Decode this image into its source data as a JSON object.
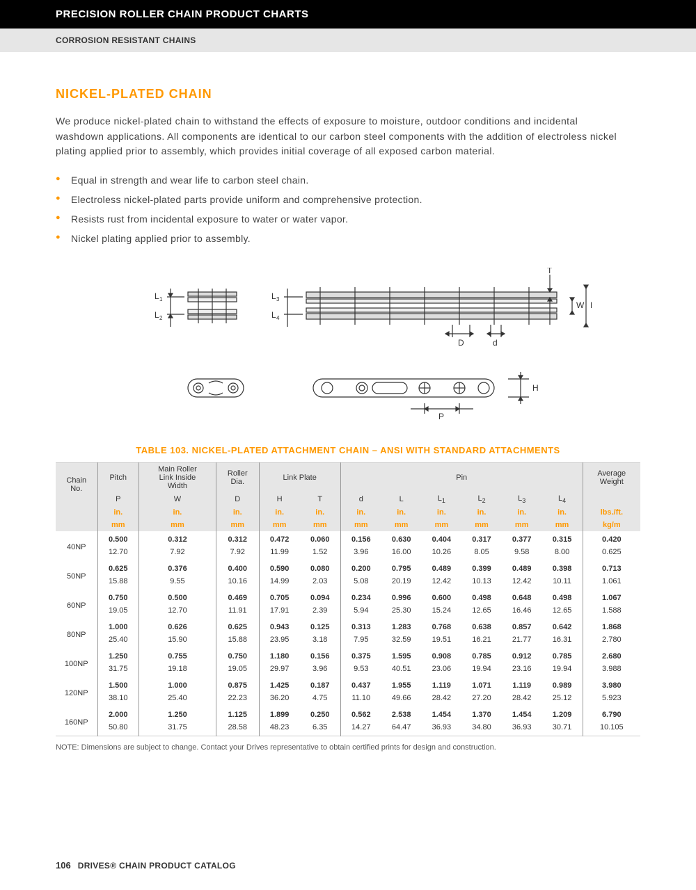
{
  "header": {
    "title_black": "PRECISION ROLLER CHAIN PRODUCT CHARTS",
    "title_gray": "CORROSION RESISTANT CHAINS"
  },
  "section": {
    "title": "NICKEL-PLATED CHAIN",
    "intro": "We produce nickel-plated chain to withstand the effects of exposure to moisture, outdoor conditions and incidental washdown applications. All components are identical to our carbon steel components with the addition of electroless nickel plating applied prior to assembly, which provides initial coverage of all exposed carbon material.",
    "bullets": [
      "Equal in strength and wear life to carbon steel chain.",
      "Electroless nickel-plated parts provide uniform and comprehensive protection.",
      "Resists rust from incidental exposure to water or water vapor.",
      "Nickel plating applied prior to assembly."
    ]
  },
  "diagram": {
    "labels": [
      "L₁",
      "L₂",
      "L₃",
      "L₄",
      "T",
      "W",
      "L",
      "D",
      "d",
      "P",
      "H"
    ]
  },
  "table": {
    "title": "TABLE 103. NICKEL-PLATED ATTACHMENT CHAIN – ANSI WITH STANDARD ATTACHMENTS",
    "groups": [
      "Chain No.",
      "Pitch",
      "Main Roller Link Inside Width",
      "Roller Dia.",
      "Link Plate",
      "Pin",
      "Average Weight"
    ],
    "sub_symbols": [
      "",
      "P",
      "W",
      "D",
      "H",
      "T",
      "d",
      "L",
      "L₁",
      "L₂",
      "L₃",
      "L₄",
      ""
    ],
    "unit_in": [
      "",
      "in.",
      "in.",
      "in.",
      "in.",
      "in.",
      "in.",
      "in.",
      "in.",
      "in.",
      "in.",
      "in.",
      "lbs./ft."
    ],
    "unit_mm": [
      "",
      "mm",
      "mm",
      "mm",
      "mm",
      "mm",
      "mm",
      "mm",
      "mm",
      "mm",
      "mm",
      "mm",
      "kg/m"
    ],
    "rows": [
      {
        "chain": "40NP",
        "in": [
          "0.500",
          "0.312",
          "0.312",
          "0.472",
          "0.060",
          "0.156",
          "0.630",
          "0.404",
          "0.317",
          "0.377",
          "0.315",
          "0.420"
        ],
        "mm": [
          "12.70",
          "7.92",
          "7.92",
          "11.99",
          "1.52",
          "3.96",
          "16.00",
          "10.26",
          "8.05",
          "9.58",
          "8.00",
          "0.625"
        ]
      },
      {
        "chain": "50NP",
        "in": [
          "0.625",
          "0.376",
          "0.400",
          "0.590",
          "0.080",
          "0.200",
          "0.795",
          "0.489",
          "0.399",
          "0.489",
          "0.398",
          "0.713"
        ],
        "mm": [
          "15.88",
          "9.55",
          "10.16",
          "14.99",
          "2.03",
          "5.08",
          "20.19",
          "12.42",
          "10.13",
          "12.42",
          "10.11",
          "1.061"
        ]
      },
      {
        "chain": "60NP",
        "in": [
          "0.750",
          "0.500",
          "0.469",
          "0.705",
          "0.094",
          "0.234",
          "0.996",
          "0.600",
          "0.498",
          "0.648",
          "0.498",
          "1.067"
        ],
        "mm": [
          "19.05",
          "12.70",
          "11.91",
          "17.91",
          "2.39",
          "5.94",
          "25.30",
          "15.24",
          "12.65",
          "16.46",
          "12.65",
          "1.588"
        ]
      },
      {
        "chain": "80NP",
        "in": [
          "1.000",
          "0.626",
          "0.625",
          "0.943",
          "0.125",
          "0.313",
          "1.283",
          "0.768",
          "0.638",
          "0.857",
          "0.642",
          "1.868"
        ],
        "mm": [
          "25.40",
          "15.90",
          "15.88",
          "23.95",
          "3.18",
          "7.95",
          "32.59",
          "19.51",
          "16.21",
          "21.77",
          "16.31",
          "2.780"
        ]
      },
      {
        "chain": "100NP",
        "in": [
          "1.250",
          "0.755",
          "0.750",
          "1.180",
          "0.156",
          "0.375",
          "1.595",
          "0.908",
          "0.785",
          "0.912",
          "0.785",
          "2.680"
        ],
        "mm": [
          "31.75",
          "19.18",
          "19.05",
          "29.97",
          "3.96",
          "9.53",
          "40.51",
          "23.06",
          "19.94",
          "23.16",
          "19.94",
          "3.988"
        ]
      },
      {
        "chain": "120NP",
        "in": [
          "1.500",
          "1.000",
          "0.875",
          "1.425",
          "0.187",
          "0.437",
          "1.955",
          "1.119",
          "1.071",
          "1.119",
          "0.989",
          "3.980"
        ],
        "mm": [
          "38.10",
          "25.40",
          "22.23",
          "36.20",
          "4.75",
          "11.10",
          "49.66",
          "28.42",
          "27.20",
          "28.42",
          "25.12",
          "5.923"
        ]
      },
      {
        "chain": "160NP",
        "in": [
          "2.000",
          "1.250",
          "1.125",
          "1.899",
          "0.250",
          "0.562",
          "2.538",
          "1.454",
          "1.370",
          "1.454",
          "1.209",
          "6.790"
        ],
        "mm": [
          "50.80",
          "31.75",
          "28.58",
          "48.23",
          "6.35",
          "14.27",
          "64.47",
          "36.93",
          "34.80",
          "36.93",
          "30.71",
          "10.105"
        ]
      }
    ],
    "note": "NOTE: Dimensions are subject to change. Contact your Drives representative to obtain certified prints for design and construction."
  },
  "footer": {
    "page": "106",
    "catalog": "DRIVES® CHAIN PRODUCT CATALOG"
  },
  "colors": {
    "accent": "#ff9900",
    "header_bg": "#000000",
    "gray_bg": "#e6e6e6",
    "text": "#333333"
  }
}
